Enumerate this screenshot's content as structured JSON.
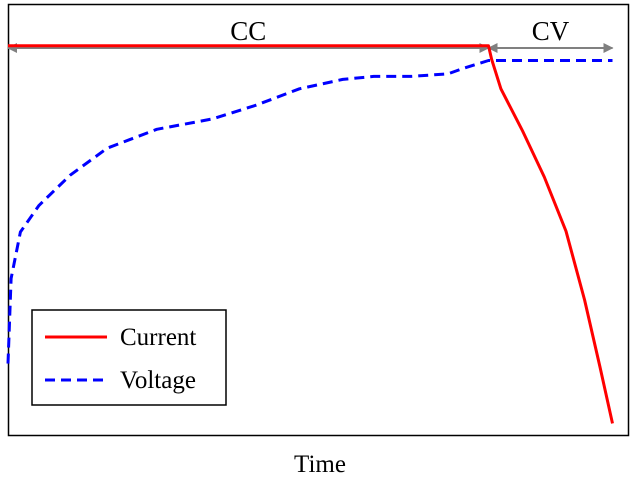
{
  "chart_data": {
    "type": "line",
    "title": "",
    "xlabel": "Time",
    "ylabel": "",
    "xlim": [
      0,
      100
    ],
    "ylim": [
      0,
      100
    ],
    "grid": false,
    "legend_position": "bottom-left",
    "phases": [
      {
        "label": "CC",
        "start": 0,
        "end": 77.5
      },
      {
        "label": "CV",
        "start": 77.5,
        "end": 97.5
      }
    ],
    "series": [
      {
        "name": "Current",
        "color": "#ff0000",
        "style": "solid",
        "x": [
          0,
          77.5,
          78.0,
          79.5,
          83.0,
          86.5,
          90.0,
          93.0,
          95.5,
          97.5
        ],
        "y": [
          90.5,
          90.5,
          87.4,
          80.5,
          70.7,
          60.0,
          47.4,
          31.4,
          15.7,
          2.7
        ]
      },
      {
        "name": "Voltage",
        "color": "#0000ff",
        "style": "dashed",
        "x": [
          0,
          0.5,
          2.0,
          5.0,
          10.0,
          16.0,
          24.0,
          33.0,
          40.0,
          47.0,
          54.0,
          59.0,
          65.0,
          71.0,
          73.5,
          77.5,
          97.5
        ],
        "y": [
          16.6,
          36.4,
          47.2,
          53.4,
          60.4,
          66.7,
          71.1,
          73.5,
          76.7,
          80.5,
          82.7,
          83.4,
          83.4,
          84.0,
          85.3,
          87.1,
          87.1
        ]
      }
    ]
  }
}
